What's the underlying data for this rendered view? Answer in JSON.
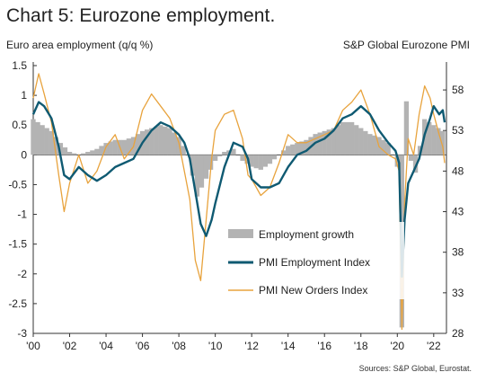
{
  "title": "Chart 5: Eurozone employment.",
  "source": "Sources: S&P Global, Eurostat.",
  "chart_data": {
    "type": "bar+line",
    "left_axis_label": "Euro area employment (q/q %)",
    "right_axis_label": "S&P Global Eurozone PMI",
    "x_ticks": [
      "'00",
      "'02",
      "'04",
      "'06",
      "'08",
      "'10",
      "'12",
      "'14",
      "'16",
      "'18",
      "'20",
      "'22"
    ],
    "x_range": [
      2000.0,
      2022.7
    ],
    "left_ylim": [
      -3,
      1.5
    ],
    "left_ticks": [
      "1.5",
      "1",
      "0.5",
      "0",
      "-0.5",
      "-1",
      "-1.5",
      "-2",
      "-2.5",
      "-3"
    ],
    "right_ylim": [
      28,
      61
    ],
    "right_ticks": [
      "58",
      "53",
      "48",
      "43",
      "38",
      "33",
      "28"
    ],
    "legend": [
      {
        "label": "Employment growth",
        "color": "#b3b3b3"
      },
      {
        "label": "PMI Employment Index",
        "color": "#0f5a72"
      },
      {
        "label": "PMI New Orders Index",
        "color": "#e8a33d"
      }
    ],
    "employment_growth": {
      "axis": "left",
      "x": [
        2000.0,
        2000.5,
        2001.0,
        2001.5,
        2002.0,
        2002.5,
        2003.0,
        2003.5,
        2004.0,
        2004.5,
        2005.0,
        2005.5,
        2006.0,
        2006.5,
        2007.0,
        2007.5,
        2008.0,
        2008.5,
        2009.0,
        2009.5,
        2010.0,
        2010.5,
        2011.0,
        2011.5,
        2012.0,
        2012.5,
        2013.0,
        2013.5,
        2014.0,
        2014.5,
        2015.0,
        2015.5,
        2016.0,
        2016.5,
        2017.0,
        2017.5,
        2018.0,
        2018.5,
        2019.0,
        2019.5,
        2020.0,
        2020.25,
        2020.5,
        2020.75,
        2021.0,
        2021.5,
        2022.0,
        2022.5
      ],
      "values": [
        0.6,
        0.5,
        0.4,
        0.2,
        0.05,
        0.0,
        0.05,
        0.1,
        0.2,
        0.25,
        0.25,
        0.3,
        0.4,
        0.45,
        0.5,
        0.45,
        0.3,
        0.0,
        -0.7,
        -0.4,
        -0.1,
        0.05,
        0.1,
        -0.1,
        -0.2,
        -0.25,
        -0.15,
        0.0,
        0.15,
        0.2,
        0.25,
        0.35,
        0.4,
        0.45,
        0.55,
        0.55,
        0.45,
        0.35,
        0.3,
        0.2,
        -0.2,
        -2.9,
        0.9,
        -0.1,
        -0.3,
        0.6,
        0.5,
        0.4
      ]
    },
    "pmi_employment": {
      "axis": "right",
      "x": [
        2000.0,
        2000.3,
        2000.6,
        2001.0,
        2001.4,
        2001.7,
        2002.0,
        2002.5,
        2003.0,
        2003.5,
        2004.0,
        2004.5,
        2005.0,
        2005.5,
        2006.0,
        2006.5,
        2007.0,
        2007.5,
        2008.0,
        2008.3,
        2008.6,
        2008.9,
        2009.2,
        2009.5,
        2009.8,
        2010.0,
        2010.5,
        2011.0,
        2011.5,
        2011.8,
        2012.0,
        2012.5,
        2013.0,
        2013.5,
        2014.0,
        2014.5,
        2015.0,
        2015.5,
        2016.0,
        2016.5,
        2017.0,
        2017.5,
        2018.0,
        2018.5,
        2019.0,
        2019.5,
        2019.9,
        2020.1,
        2020.25,
        2020.4,
        2020.6,
        2020.9,
        2021.2,
        2021.5,
        2021.8,
        2022.0,
        2022.3,
        2022.5,
        2022.6
      ],
      "values": [
        55.0,
        56.5,
        56.0,
        54.5,
        51.0,
        47.5,
        47.0,
        48.5,
        47.5,
        46.8,
        47.5,
        48.5,
        49.0,
        49.5,
        51.5,
        53.0,
        54.0,
        53.5,
        52.5,
        51.5,
        49.5,
        45.5,
        41.5,
        40.0,
        42.0,
        44.0,
        48.5,
        51.5,
        51.0,
        49.5,
        47.0,
        46.0,
        46.0,
        46.5,
        48.5,
        50.0,
        50.5,
        51.5,
        52.0,
        53.0,
        54.5,
        55.0,
        56.0,
        55.0,
        53.0,
        51.5,
        50.5,
        49.0,
        35.0,
        42.0,
        46.5,
        48.0,
        49.5,
        52.5,
        54.5,
        56.0,
        55.0,
        55.5,
        54.0
      ]
    },
    "pmi_new_orders": {
      "axis": "right",
      "x": [
        2000.0,
        2000.3,
        2000.6,
        2001.0,
        2001.4,
        2001.7,
        2002.0,
        2002.5,
        2003.0,
        2003.5,
        2004.0,
        2004.5,
        2005.0,
        2005.5,
        2006.0,
        2006.5,
        2007.0,
        2007.5,
        2008.0,
        2008.3,
        2008.6,
        2008.9,
        2009.2,
        2009.5,
        2009.8,
        2010.0,
        2010.5,
        2011.0,
        2011.5,
        2011.8,
        2012.0,
        2012.5,
        2013.0,
        2013.5,
        2014.0,
        2014.5,
        2015.0,
        2015.5,
        2016.0,
        2016.5,
        2017.0,
        2017.5,
        2018.0,
        2018.5,
        2019.0,
        2019.5,
        2019.9,
        2020.1,
        2020.25,
        2020.4,
        2020.6,
        2020.9,
        2021.2,
        2021.5,
        2021.8,
        2022.0,
        2022.3,
        2022.5,
        2022.6
      ],
      "values": [
        57.0,
        60.0,
        57.5,
        54.0,
        47.5,
        43.0,
        46.5,
        50.0,
        46.5,
        48.0,
        51.0,
        52.5,
        49.5,
        51.0,
        55.5,
        57.5,
        56.0,
        54.5,
        51.5,
        48.0,
        44.5,
        37.0,
        34.5,
        42.0,
        49.5,
        53.0,
        55.0,
        55.5,
        52.0,
        47.5,
        47.0,
        45.0,
        46.0,
        49.0,
        52.5,
        51.5,
        51.5,
        52.0,
        52.5,
        53.0,
        55.5,
        56.5,
        58.0,
        55.0,
        51.0,
        50.0,
        49.5,
        48.0,
        28.5,
        44.0,
        52.0,
        50.0,
        55.0,
        58.5,
        57.0,
        55.0,
        52.5,
        51.0,
        49.0
      ]
    }
  }
}
